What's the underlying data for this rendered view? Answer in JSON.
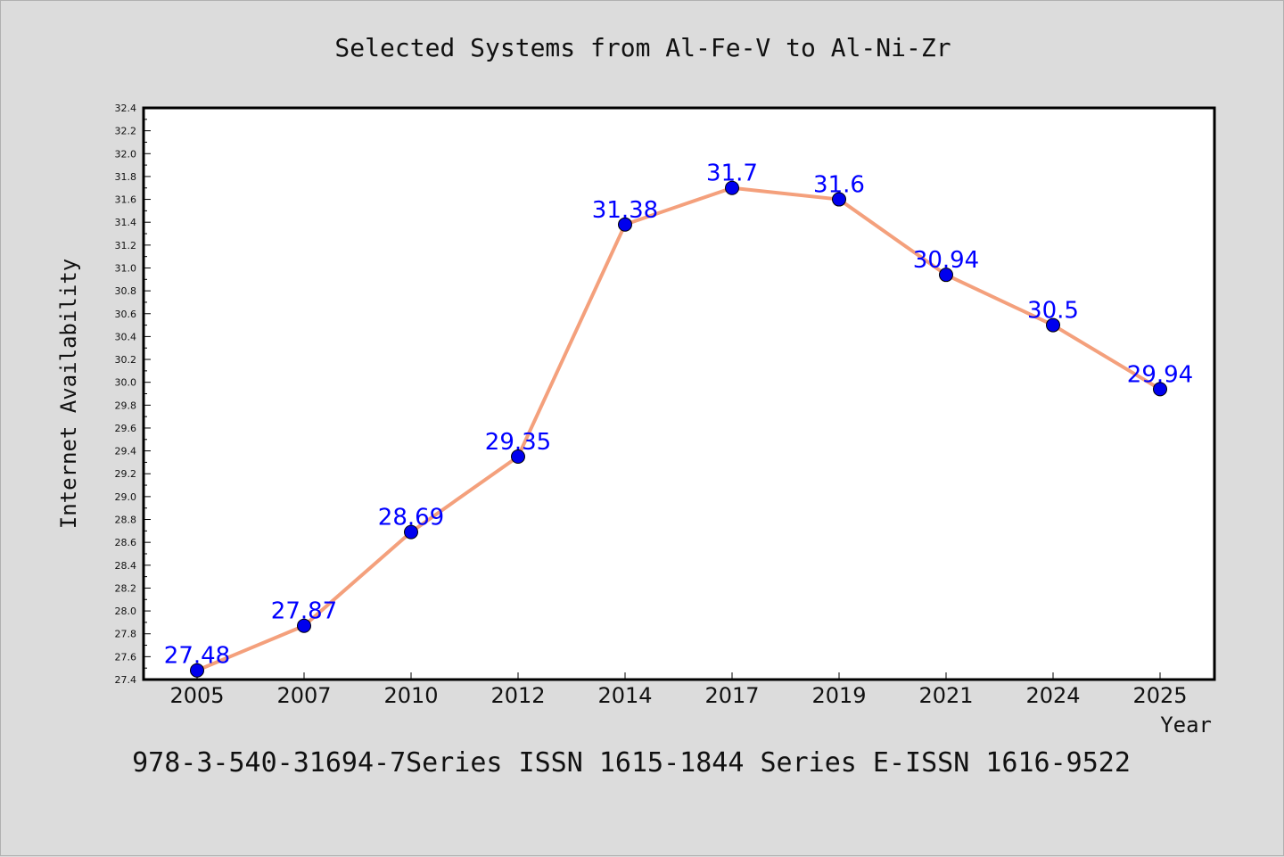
{
  "colors": {
    "background": "#dcdcdc",
    "plot_background": "#ffffff",
    "line": "#f4a07c",
    "marker": "#0000ee",
    "data_label": "#0000ff",
    "text": "#111111"
  },
  "chart_data": {
    "type": "line",
    "title": "Selected Systems from Al-Fe-V to Al-Ni-Zr",
    "footer": "978-3-540-31694-7Series ISSN 1615-1844 Series E-ISSN 1616-9522",
    "xlabel": "Year",
    "ylabel": "Internet Availability",
    "categories": [
      "2005",
      "2007",
      "2010",
      "2012",
      "2014",
      "2017",
      "2019",
      "2021",
      "2024",
      "2025"
    ],
    "series": [
      {
        "values": [
          27.48,
          27.87,
          28.69,
          29.35,
          31.38,
          31.7,
          31.6,
          30.94,
          30.5,
          29.94
        ],
        "labels": [
          "27.48",
          "27.87",
          "28.69",
          "29.35",
          "31.38",
          "31.7",
          "31.6",
          "30.94",
          "30.5",
          "29.94"
        ]
      }
    ],
    "ylim": [
      27.4,
      32.4
    ],
    "yticks": [
      "27.4",
      "27.6",
      "27.8",
      "28.0",
      "28.2",
      "28.4",
      "28.6",
      "28.8",
      "29.0",
      "29.2",
      "29.4",
      "29.6",
      "29.8",
      "30.0",
      "30.2",
      "30.4",
      "30.6",
      "30.8",
      "31.0",
      "31.2",
      "31.4",
      "31.6",
      "31.8",
      "32.0",
      "32.2",
      "32.4"
    ],
    "grid": false,
    "legend": "none",
    "markers": "filled-circle",
    "data_labels": "above-point"
  }
}
